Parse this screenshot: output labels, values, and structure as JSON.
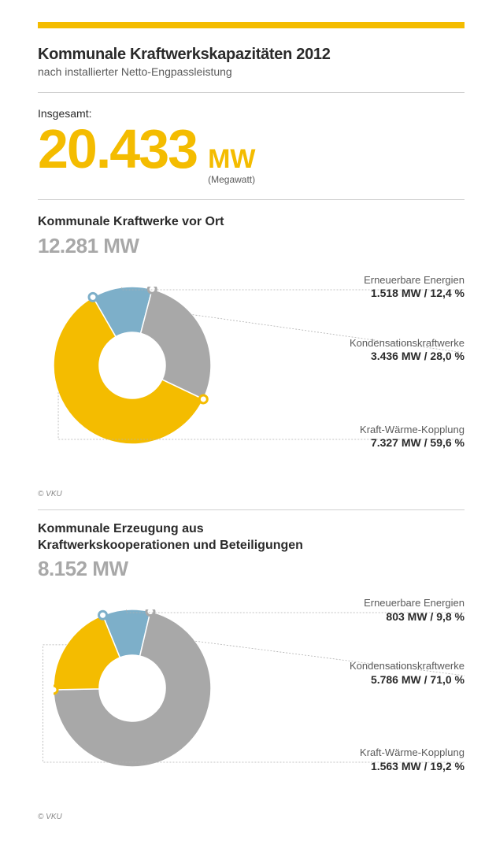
{
  "accent_color": "#f4bc00",
  "title": "Kommunale Kraftwerkskapazitäten 2012",
  "subtitle": "nach installierter Netto-Engpassleistung",
  "total_label": "Insgesamt:",
  "total_value": "20.433",
  "total_unit": "MW",
  "total_unit_sub": "(Megawatt)",
  "copyright": "© VKU",
  "chart1": {
    "title": "Kommunale Kraftwerke vor Ort",
    "total": "12.281 MW",
    "type": "donut",
    "inner_radius": 42,
    "outer_radius": 100,
    "background_color": "#ffffff",
    "slices": [
      {
        "label": "Erneuerbare Energien",
        "value_text": "1.518 MW / 12,4 %",
        "percent": 12.4,
        "color": "#7dafc9"
      },
      {
        "label": "Kondensationskraftwerke",
        "value_text": "3.436 MW / 28,0 %",
        "percent": 28.0,
        "color": "#a8a8a8"
      },
      {
        "label": "Kraft-Wärme-Kopplung",
        "value_text": "7.327 MW / 59,6 %",
        "percent": 59.6,
        "color": "#f4bc00"
      }
    ],
    "start_angle_deg": -30
  },
  "chart2": {
    "title": "Kommunale Erzeugung aus\nKraftwerkskooperationen und Beteiligungen",
    "total": "8.152 MW",
    "type": "donut",
    "inner_radius": 42,
    "outer_radius": 100,
    "background_color": "#ffffff",
    "slices": [
      {
        "label": "Erneuerbare Energien",
        "value_text": "803 MW / 9,8 %",
        "percent": 9.8,
        "color": "#7dafc9"
      },
      {
        "label": "Kondensationskraftwerke",
        "value_text": "5.786 MW / 71,0 %",
        "percent": 71.0,
        "color": "#a8a8a8"
      },
      {
        "label": "Kraft-Wärme-Kopplung",
        "value_text": "1.563 MW / 19,2 %",
        "percent": 19.2,
        "color": "#f4bc00"
      }
    ],
    "start_angle_deg": -22
  }
}
